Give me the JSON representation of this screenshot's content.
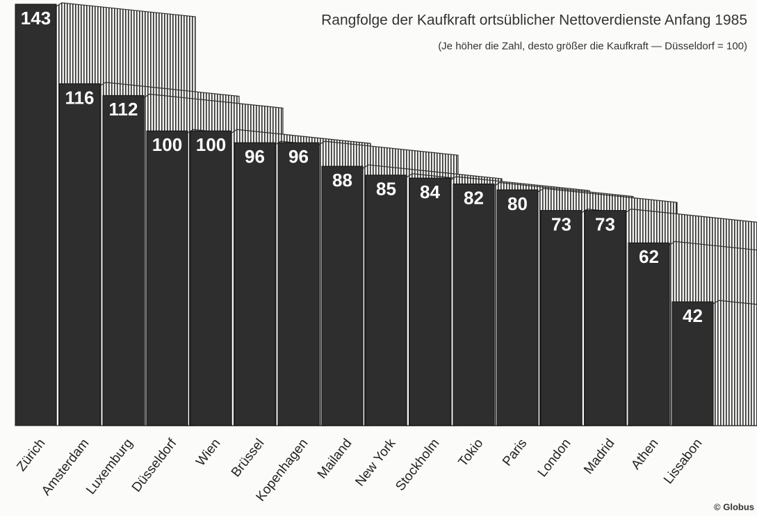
{
  "chart_data": {
    "type": "bar",
    "title": "Rangfolge der Kaufkraft ortsüblicher Nettoverdienste Anfang 1985",
    "subtitle": "(Je höher die Zahl, desto größer die Kaufkraft — Düsseldorf = 100)",
    "source": "© Globus",
    "categories": [
      "Zürich",
      "Amsterdam",
      "Luxemburg",
      "Düsseldorf",
      "Wien",
      "Brüssel",
      "Kopenhagen",
      "Mailand",
      "New York",
      "Stockholm",
      "Tokio",
      "Paris",
      "London",
      "Madrid",
      "Athen",
      "Lissabon"
    ],
    "values": [
      143,
      116,
      112,
      100,
      100,
      96,
      96,
      88,
      85,
      84,
      82,
      80,
      73,
      73,
      62,
      42
    ],
    "color": "#2e2e2e"
  }
}
